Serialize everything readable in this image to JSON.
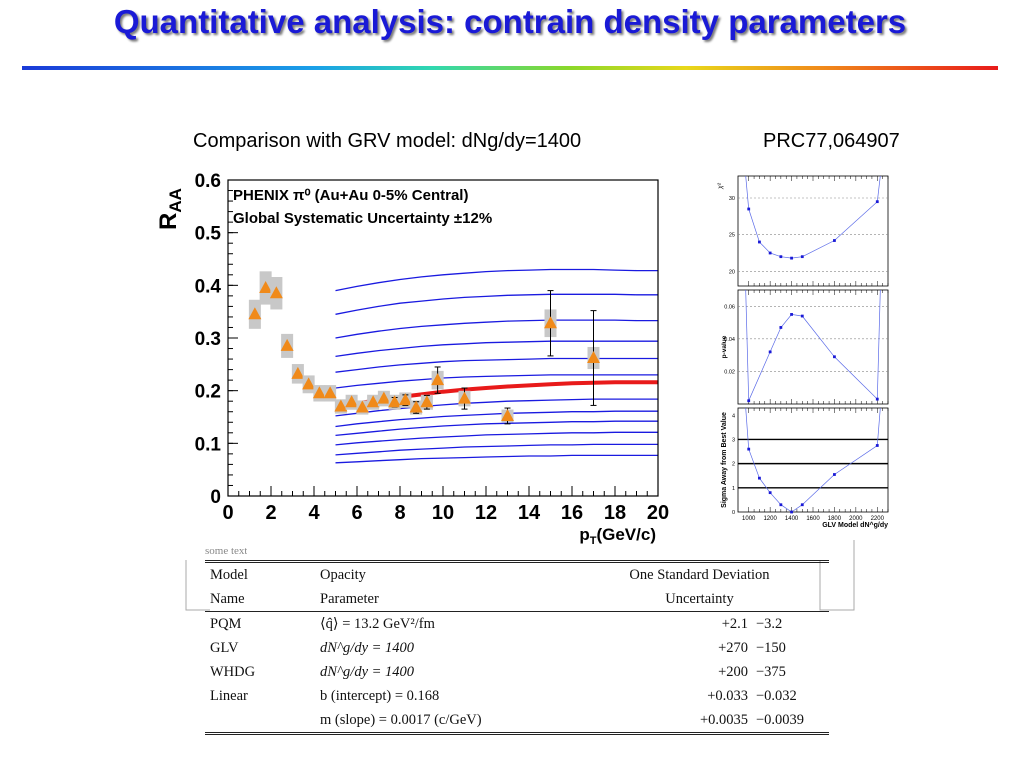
{
  "slide": {
    "title": "Quantitative analysis: contrain density parameters",
    "subtitle": "Comparison with GRV model: dNg/dy=1400",
    "reference": "PRC77,064907"
  },
  "colors": {
    "title": "#1a1ad6",
    "data_marker": "#f08a1a",
    "best_fit": "#e81a1a",
    "model_curves": "#1a1ae0",
    "inset_lines": "#5a6ae8"
  },
  "chart_data": [
    {
      "type": "scatter",
      "ylabel": "R_AA",
      "xlabel": "p_T(GeV/c)",
      "legend": [
        "PHENIX π⁰ (Au+Au 0-5% Central)",
        "Global Systematic Uncertainty ±12%"
      ],
      "xlim": [
        0,
        20
      ],
      "ylim": [
        0,
        0.6
      ],
      "xticks": [
        "0",
        "2",
        "4",
        "6",
        "8",
        "10",
        "12",
        "14",
        "16",
        "18",
        "20"
      ],
      "yticks": [
        "0",
        "0.1",
        "0.2",
        "0.3",
        "0.4",
        "0.5",
        "0.6"
      ],
      "series": [
        {
          "x": [
            1.25,
            1.75,
            2.25,
            2.75,
            3.25,
            3.75,
            4.25,
            4.75,
            5.25,
            5.75,
            6.25,
            6.75,
            7.25,
            7.75,
            8.25,
            8.75,
            9.25,
            9.75,
            11,
            13,
            15,
            17
          ],
          "y": [
            0.345,
            0.395,
            0.385,
            0.285,
            0.232,
            0.212,
            0.195,
            0.195,
            0.17,
            0.178,
            0.168,
            0.178,
            0.185,
            0.178,
            0.182,
            0.168,
            0.178,
            0.22,
            0.185,
            0.152,
            0.328,
            0.262
          ],
          "stat_err": [
            0.005,
            0.005,
            0.005,
            0.005,
            0.005,
            0.005,
            0.005,
            0.005,
            0.005,
            0.005,
            0.006,
            0.007,
            0.008,
            0.009,
            0.01,
            0.011,
            0.013,
            0.025,
            0.02,
            0.015,
            0.062,
            0.09
          ]
        }
      ],
      "model_curves": {
        "x": [
          5,
          6,
          7,
          8,
          9,
          10,
          11,
          12,
          13,
          14,
          15,
          16,
          17,
          18,
          19,
          20
        ],
        "best_fit_index": 6,
        "families": [
          [
            0.39,
            0.398,
            0.405,
            0.411,
            0.416,
            0.42,
            0.423,
            0.426,
            0.428,
            0.429,
            0.43,
            0.43,
            0.43,
            0.429,
            0.428,
            0.428
          ],
          [
            0.345,
            0.353,
            0.36,
            0.366,
            0.37,
            0.374,
            0.377,
            0.379,
            0.381,
            0.382,
            0.383,
            0.383,
            0.383,
            0.383,
            0.382,
            0.382
          ],
          [
            0.3,
            0.307,
            0.313,
            0.318,
            0.322,
            0.325,
            0.328,
            0.33,
            0.332,
            0.333,
            0.334,
            0.334,
            0.334,
            0.334,
            0.333,
            0.333
          ],
          [
            0.265,
            0.271,
            0.276,
            0.28,
            0.284,
            0.287,
            0.289,
            0.291,
            0.292,
            0.293,
            0.294,
            0.294,
            0.294,
            0.294,
            0.294,
            0.294
          ],
          [
            0.235,
            0.24,
            0.245,
            0.249,
            0.252,
            0.255,
            0.257,
            0.258,
            0.259,
            0.26,
            0.261,
            0.261,
            0.261,
            0.261,
            0.261,
            0.261
          ],
          [
            0.205,
            0.21,
            0.214,
            0.218,
            0.221,
            0.224,
            0.226,
            0.227,
            0.228,
            0.229,
            0.23,
            0.23,
            0.23,
            0.23,
            0.23,
            0.23
          ],
          [
            0.168,
            0.176,
            0.182,
            0.188,
            0.193,
            0.198,
            0.202,
            0.205,
            0.208,
            0.21,
            0.212,
            0.214,
            0.215,
            0.216,
            0.216,
            0.216
          ],
          [
            0.152,
            0.157,
            0.162,
            0.166,
            0.17,
            0.173,
            0.176,
            0.178,
            0.18,
            0.181,
            0.182,
            0.183,
            0.184,
            0.184,
            0.184,
            0.184
          ],
          [
            0.132,
            0.137,
            0.141,
            0.145,
            0.148,
            0.151,
            0.153,
            0.155,
            0.157,
            0.158,
            0.159,
            0.16,
            0.16,
            0.161,
            0.161,
            0.161
          ],
          [
            0.115,
            0.119,
            0.123,
            0.127,
            0.13,
            0.133,
            0.135,
            0.137,
            0.138,
            0.139,
            0.14,
            0.141,
            0.141,
            0.142,
            0.142,
            0.142
          ],
          [
            0.097,
            0.101,
            0.104,
            0.107,
            0.11,
            0.112,
            0.114,
            0.116,
            0.117,
            0.118,
            0.119,
            0.12,
            0.12,
            0.121,
            0.121,
            0.121
          ],
          [
            0.078,
            0.081,
            0.084,
            0.087,
            0.089,
            0.091,
            0.093,
            0.094,
            0.095,
            0.096,
            0.097,
            0.097,
            0.098,
            0.098,
            0.098,
            0.098
          ],
          [
            0.063,
            0.065,
            0.067,
            0.069,
            0.071,
            0.072,
            0.073,
            0.074,
            0.075,
            0.076,
            0.076,
            0.077,
            0.077,
            0.077,
            0.077,
            0.077
          ]
        ]
      }
    },
    {
      "type": "line",
      "ylabel": "χ²",
      "xlim": [
        900,
        2300
      ],
      "ylim": [
        18,
        33
      ],
      "yticks": [
        "20",
        "25",
        "30"
      ],
      "x": [
        1000,
        1100,
        1200,
        1300,
        1400,
        1500,
        1800,
        2200
      ],
      "values": [
        28.5,
        24.0,
        22.5,
        22.0,
        21.8,
        22.0,
        24.2,
        29.5
      ]
    },
    {
      "type": "line",
      "ylabel": "p-value",
      "xlim": [
        900,
        2300
      ],
      "ylim": [
        0,
        0.07
      ],
      "yticks": [
        "0.02",
        "0.04",
        "0.06"
      ],
      "x": [
        1000,
        1200,
        1300,
        1400,
        1500,
        1800,
        2200
      ],
      "values": [
        0.002,
        0.032,
        0.047,
        0.055,
        0.054,
        0.029,
        0.003
      ]
    },
    {
      "type": "line",
      "ylabel": "Sigma Away from Best Value",
      "xlabel": "GLV Model dN^g/dy",
      "xlim": [
        900,
        2300
      ],
      "ylim": [
        0,
        4.3
      ],
      "yticks": [
        "0",
        "1",
        "2",
        "3",
        "4"
      ],
      "xticks": [
        "1000",
        "1200",
        "1400",
        "1600",
        "1800",
        "2000",
        "2200"
      ],
      "x": [
        1000,
        1100,
        1200,
        1300,
        1400,
        1500,
        1800,
        2200
      ],
      "values": [
        2.6,
        1.4,
        0.8,
        0.3,
        0.0,
        0.3,
        1.55,
        2.75
      ],
      "reference_lines": [
        1,
        2,
        3
      ]
    }
  ],
  "table": {
    "cut_text": "some text",
    "header_rows": [
      [
        "Model",
        "Opacity",
        "One Standard Deviation"
      ],
      [
        "Name",
        "Parameter",
        "Uncertainty"
      ]
    ],
    "rows": [
      {
        "model": "PQM",
        "param": "⟨q̂⟩ = 13.2 GeV²/fm",
        "plus": "+2.1",
        "minus": "−3.2"
      },
      {
        "model": "GLV",
        "param": "dN^g/dy = 1400",
        "plus": "+270",
        "minus": "−150"
      },
      {
        "model": "WHDG",
        "param": "dN^g/dy = 1400",
        "plus": "+200",
        "minus": "−375"
      },
      {
        "model": "Linear",
        "param": "b (intercept) = 0.168",
        "plus": "+0.033",
        "minus": "−0.032"
      },
      {
        "model": "",
        "param": "m (slope) = 0.0017 (c/GeV)",
        "plus": "+0.0035",
        "minus": "−0.0039"
      }
    ]
  }
}
